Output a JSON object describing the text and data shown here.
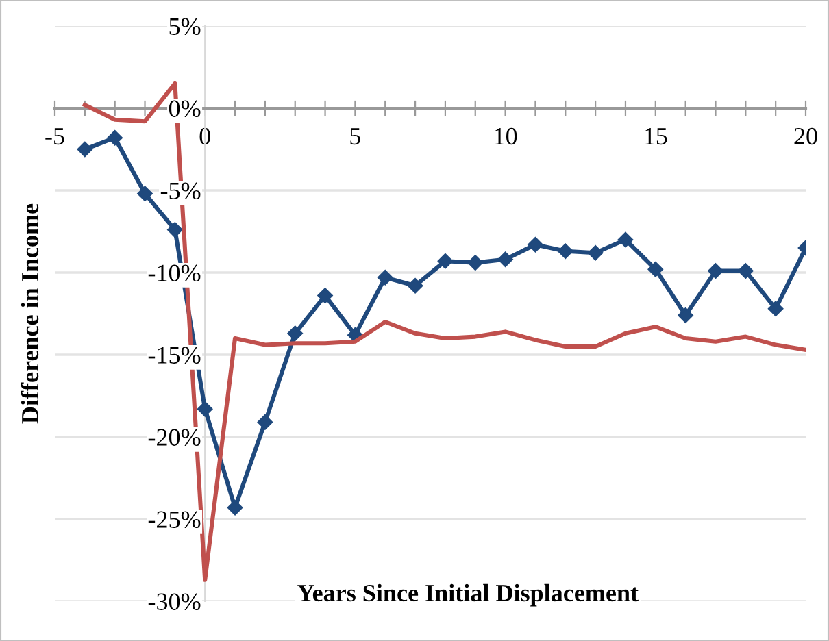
{
  "chart_data": {
    "type": "line",
    "xlabel": "Years Since Initial Displacement",
    "ylabel": "Difference in Income",
    "x": [
      -4,
      -3,
      -2,
      -1,
      0,
      1,
      2,
      3,
      4,
      5,
      6,
      7,
      8,
      9,
      10,
      11,
      12,
      13,
      14,
      15,
      16,
      17,
      18,
      19,
      20
    ],
    "series": [
      {
        "color": "#1f497d",
        "marker": "diamond",
        "values": [
          -2.5,
          -1.8,
          -5.2,
          -7.4,
          -18.3,
          -24.3,
          -19.1,
          -13.7,
          -11.4,
          -13.8,
          -10.3,
          -10.8,
          -9.3,
          -9.4,
          -9.2,
          -8.3,
          -8.7,
          -8.8,
          -8.0,
          -9.8,
          -12.6,
          -9.9,
          -9.9,
          -12.2,
          -8.5
        ]
      },
      {
        "color": "#c0504d",
        "marker": "none",
        "values": [
          0.2,
          -0.7,
          -0.8,
          1.5,
          -28.7,
          -14.0,
          -14.4,
          -14.3,
          -14.3,
          -14.2,
          -13.0,
          -13.7,
          -14.0,
          -13.9,
          -13.6,
          -14.1,
          -14.5,
          -14.5,
          -13.7,
          -13.3,
          -14.0,
          -14.2,
          -13.9,
          -14.4,
          -14.7
        ]
      }
    ],
    "xlim": [
      -5,
      20
    ],
    "xticks": [
      -5,
      {
        "value": -4,
        "label": null
      },
      {
        "value": -3,
        "label": null
      },
      {
        "value": -2,
        "label": null
      },
      {
        "value": -1,
        "label": null
      },
      0,
      {
        "value": 1,
        "label": null
      },
      {
        "value": 2,
        "label": null
      },
      {
        "value": 3,
        "label": null
      },
      {
        "value": 4,
        "label": null
      },
      5,
      {
        "value": 6,
        "label": null
      },
      {
        "value": 7,
        "label": null
      },
      {
        "value": 8,
        "label": null
      },
      {
        "value": 9,
        "label": null
      },
      10,
      {
        "value": 11,
        "label": null
      },
      {
        "value": 12,
        "label": null
      },
      {
        "value": 13,
        "label": null
      },
      {
        "value": 14,
        "label": null
      },
      15,
      {
        "value": 16,
        "label": null
      },
      {
        "value": 17,
        "label": null
      },
      {
        "value": 18,
        "label": null
      },
      {
        "value": 19,
        "label": null
      },
      20
    ],
    "ylim": [
      -30,
      5
    ],
    "yticks": [
      {
        "value": 5,
        "label": "5%"
      },
      {
        "value": 0,
        "label": "0%"
      },
      {
        "value": -5,
        "label": "-5%"
      },
      {
        "value": -10,
        "label": "-10%"
      },
      {
        "value": -15,
        "label": "-15%"
      },
      {
        "value": -20,
        "label": "-20%"
      },
      {
        "value": -25,
        "label": "-25%"
      },
      {
        "value": -30,
        "label": "-30%"
      }
    ],
    "grid": "y",
    "legend": false,
    "line_style": "solid"
  }
}
